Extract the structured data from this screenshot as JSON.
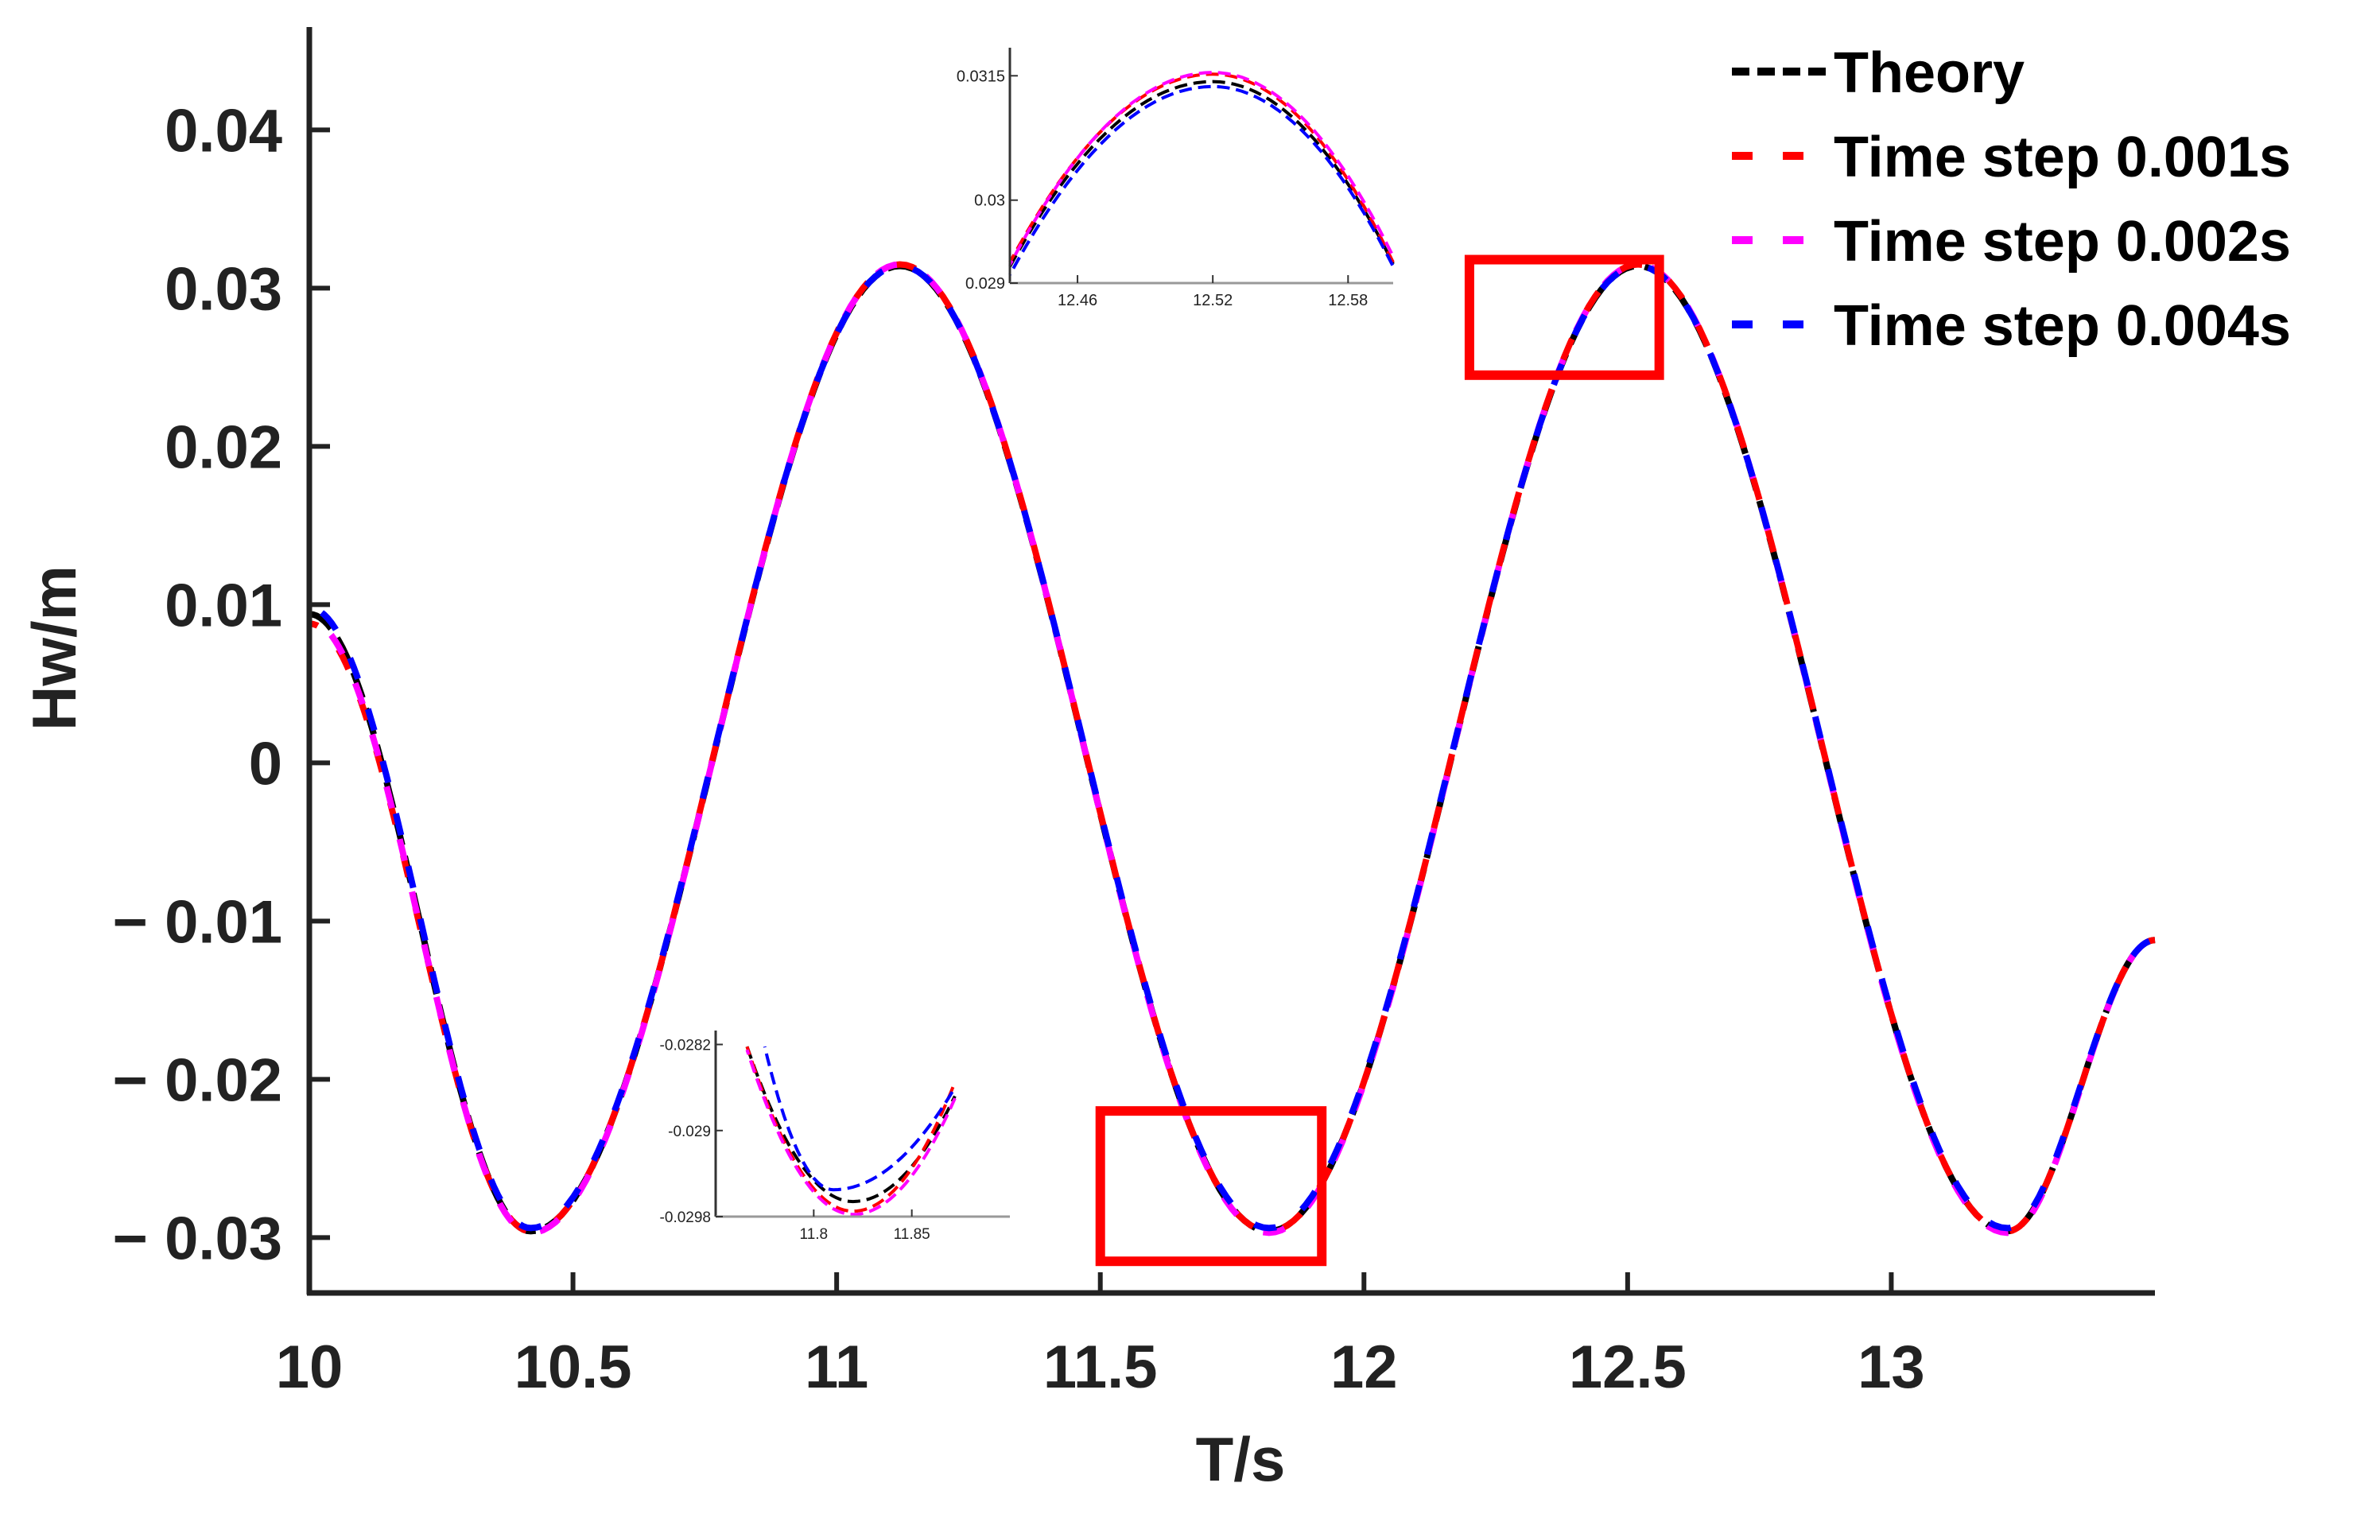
{
  "chart_data": {
    "type": "line",
    "xlabel": "T/s",
    "ylabel": "Hw/m",
    "xlim": [
      10,
      13.5
    ],
    "ylim": [
      -0.0335,
      0.0465
    ],
    "xticks": [
      10,
      10.5,
      11,
      11.5,
      12,
      12.5,
      13
    ],
    "xtick_labels": [
      "10",
      "10.5",
      "11",
      "11.5",
      "12",
      "12.5",
      "13"
    ],
    "yticks": [
      0.04,
      0.03,
      0.02,
      0.01,
      0,
      -0.01,
      -0.02,
      -0.03
    ],
    "ytick_labels": [
      "0.04",
      "0.03",
      "0.02",
      "0.01",
      "0",
      "− 0.01",
      "− 0.02",
      "− 0.03"
    ],
    "grid": false,
    "legend_position": "top-right",
    "wave": {
      "amplitude": 0.0305,
      "period": 1.4,
      "crest_time": 12.52,
      "mean": 0.0007
    },
    "series": [
      {
        "name": "Theory",
        "color": "#000000",
        "dash": "dash",
        "x": [
          10.0,
          10.42,
          11.12,
          11.82,
          12.52,
          13.22,
          13.5
        ],
        "y": [
          0.0094,
          -0.0296,
          0.0314,
          -0.0296,
          0.0314,
          -0.0296,
          -0.0112
        ]
      },
      {
        "name": "Time step 0.001s",
        "color": "#ff0000",
        "dash": "dash",
        "x": [
          10.0,
          10.42,
          11.12,
          11.82,
          12.52,
          13.22,
          13.5
        ],
        "y": [
          0.0088,
          -0.0296,
          0.0315,
          -0.0296,
          0.0315,
          -0.0296,
          -0.0112
        ]
      },
      {
        "name": "Time step 0.002s",
        "color": "#ff00ff",
        "dash": "dash",
        "x": [
          10.0,
          10.42,
          11.12,
          11.82,
          12.52,
          13.22,
          13.5
        ],
        "y": [
          0.009,
          -0.0297,
          0.0315,
          -0.0297,
          0.0315,
          -0.0297,
          -0.0112
        ]
      },
      {
        "name": "Time step 0.004s",
        "color": "#0000ff",
        "dash": "dash",
        "x": [
          10.0,
          10.42,
          11.12,
          11.82,
          12.52,
          13.22,
          13.5
        ],
        "y": [
          0.0098,
          -0.0294,
          0.0314,
          -0.0294,
          0.0314,
          -0.0294,
          -0.0112
        ]
      }
    ],
    "zoom_boxes": [
      {
        "x": [
          11.5,
          11.92
        ],
        "y": [
          -0.0315,
          -0.022
        ],
        "color": "#ff0000"
      },
      {
        "x": [
          12.2,
          12.56
        ],
        "y": [
          0.0245,
          0.0318
        ],
        "color": "#ff0000"
      }
    ],
    "insets": [
      {
        "xlim": [
          12.43,
          12.6
        ],
        "ylim": [
          0.029,
          0.0318
        ],
        "xticks": [
          12.46,
          12.52,
          12.58
        ],
        "xtick_labels": [
          "12.46",
          "12.52",
          "12.58"
        ],
        "yticks": [
          0.0315,
          0.03,
          0.029
        ],
        "ytick_labels": [
          "0.0315",
          "0.03",
          "0.029"
        ],
        "series": [
          {
            "color": "#000000",
            "x": [
              12.43,
              12.52,
              12.6
            ],
            "y": [
              0.0292,
              0.03143,
              0.02923
            ],
            "curvature": 0.00028
          },
          {
            "color": "#ff0000",
            "x": [
              12.43,
              12.52,
              12.6
            ],
            "y": [
              0.02925,
              0.03152,
              0.02925
            ],
            "curvature": 0.00028
          },
          {
            "color": "#ff00ff",
            "x": [
              12.43,
              12.52,
              12.6
            ],
            "y": [
              0.02922,
              0.03154,
              0.02932
            ],
            "curvature": 0.00029
          },
          {
            "color": "#0000ff",
            "x": [
              12.43,
              12.52,
              12.6
            ],
            "y": [
              0.0291,
              0.03137,
              0.0292
            ],
            "curvature": 0.00028
          }
        ]
      },
      {
        "xlim": [
          11.75,
          11.9
        ],
        "ylim": [
          -0.0298,
          -0.0281
        ],
        "xticks": [
          11.8,
          11.85
        ],
        "xtick_labels": [
          "11.8",
          "11.85"
        ],
        "yticks": [
          -0.0282,
          -0.029,
          -0.0298
        ],
        "ytick_labels": [
          "-0.0282",
          "-0.029",
          "-0.0298"
        ],
        "series": [
          {
            "color": "#000000",
            "x": [
              11.766,
              11.82,
              11.872
            ],
            "y": [
              -0.02822,
              -0.02966,
              -0.02868
            ],
            "curvature": 0.0006
          },
          {
            "color": "#ff0000",
            "x": [
              11.766,
              11.82,
              11.872
            ],
            "y": [
              -0.02822,
              -0.02975,
              -0.02855
            ],
            "curvature": 0.0006
          },
          {
            "color": "#ff00ff",
            "x": [
              11.766,
              11.82,
              11.872
            ],
            "y": [
              -0.02825,
              -0.02978,
              -0.0287
            ],
            "curvature": 0.0006
          },
          {
            "color": "#0000ff",
            "x": [
              11.775,
              11.81,
              11.872
            ],
            "y": [
              -0.02822,
              -0.02955,
              -0.0286
            ],
            "curvature": 0.0006
          }
        ]
      }
    ]
  }
}
